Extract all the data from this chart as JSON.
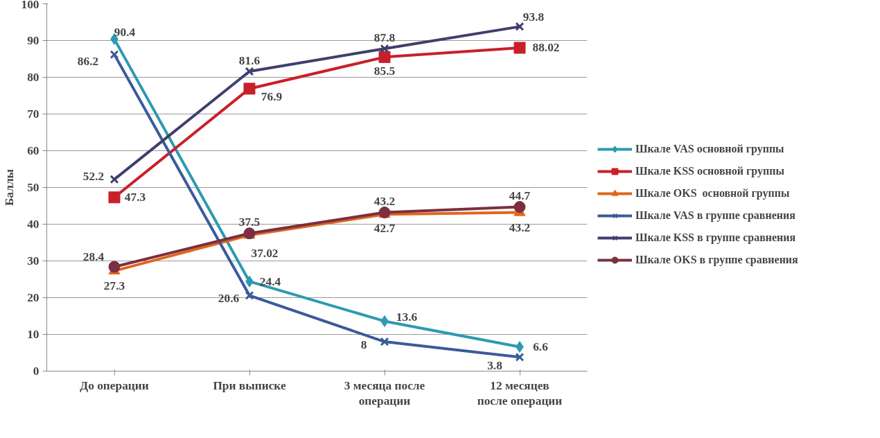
{
  "chart_data": {
    "type": "line",
    "ylabel": "Баллы",
    "categories": [
      "До операции",
      "При выписке",
      "3 месяца после операции",
      "12 месяцев после операции"
    ],
    "ylim": [
      0,
      100
    ],
    "yticks": [
      0,
      10,
      20,
      30,
      40,
      50,
      60,
      70,
      80,
      90,
      100
    ],
    "grid": "y",
    "legend": "right",
    "data_labels": true,
    "line_style": "solid",
    "series": [
      {
        "name": "Шкале VAS основной группы",
        "color": "#2e9ab0",
        "marker": "diamond",
        "values": [
          90.4,
          24.4,
          13.6,
          6.6
        ]
      },
      {
        "name": "Шкале KSS основной группы",
        "color": "#c8202a",
        "marker": "square",
        "values": [
          47.3,
          76.9,
          85.5,
          88.02
        ]
      },
      {
        "name": "Шкале OKS  основной группы",
        "color": "#e0661c",
        "marker": "triangle",
        "values": [
          27.3,
          37.02,
          42.7,
          43.2
        ]
      },
      {
        "name": "Шкале VAS в группе сравнения",
        "color": "#3a5b99",
        "marker": "cross",
        "values": [
          86.2,
          20.6,
          8,
          3.8
        ]
      },
      {
        "name": "Шкале KSS в группе сравнения",
        "color": "#3f3f6e",
        "marker": "cross",
        "values": [
          52.2,
          81.6,
          87.8,
          93.8
        ]
      },
      {
        "name": "Шкале OKS в группе сравнения",
        "color": "#7b2f40",
        "marker": "circle",
        "values": [
          28.4,
          37.5,
          43.2,
          44.7
        ]
      }
    ]
  }
}
